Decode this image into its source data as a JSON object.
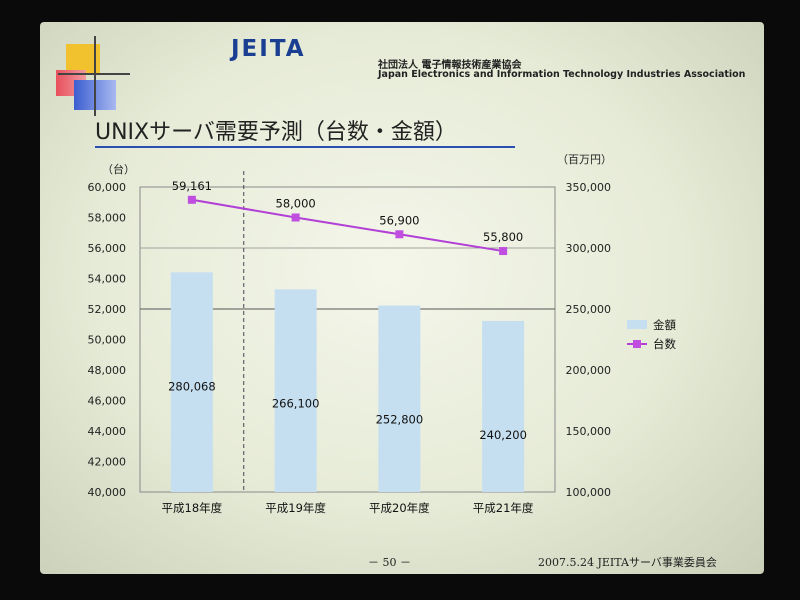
{
  "header": {
    "logo_word": "JEITA",
    "logo_jp": "社団法人 電子情報技術産業協会",
    "logo_en": "Japan Electronics and Information Technology Industries Association"
  },
  "slide": {
    "title": "UNIXサーバ需要予測（台数・金額）",
    "page_number": "－ 50 －",
    "footer": "2007.5.24 JEITAサーバ事業委員会"
  },
  "colors": {
    "bar": "#c5dff0",
    "line": "#b23fd6",
    "marker": "#c04ee0",
    "grid": "#8a8a8a"
  },
  "chart_data": {
    "type": "bar",
    "categories": [
      "平成18年度",
      "平成19年度",
      "平成20年度",
      "平成21年度"
    ],
    "left_axis": {
      "unit_label": "（台）",
      "ylim": [
        40000,
        60000
      ],
      "ticks": [
        "40,000",
        "42,000",
        "44,000",
        "46,000",
        "48,000",
        "50,000",
        "52,000",
        "54,000",
        "56,000",
        "58,000",
        "60,000"
      ]
    },
    "right_axis": {
      "unit_label": "（百万円）",
      "ylim": [
        100000,
        350000
      ],
      "ticks": [
        "100,000",
        "150,000",
        "200,000",
        "250,000",
        "300,000",
        "350,000"
      ]
    },
    "series": [
      {
        "name": "金額",
        "type": "bar",
        "axis": "right",
        "values": [
          280068,
          266100,
          252800,
          240200
        ],
        "labels": [
          "280,068",
          "266,100",
          "252,800",
          "240,200"
        ]
      },
      {
        "name": "台数",
        "type": "line",
        "axis": "left",
        "values": [
          59161,
          58000,
          56900,
          55800
        ],
        "labels": [
          "59,161",
          "58,000",
          "56,900",
          "55,800"
        ]
      }
    ],
    "legend_position": "right",
    "grid": true
  }
}
